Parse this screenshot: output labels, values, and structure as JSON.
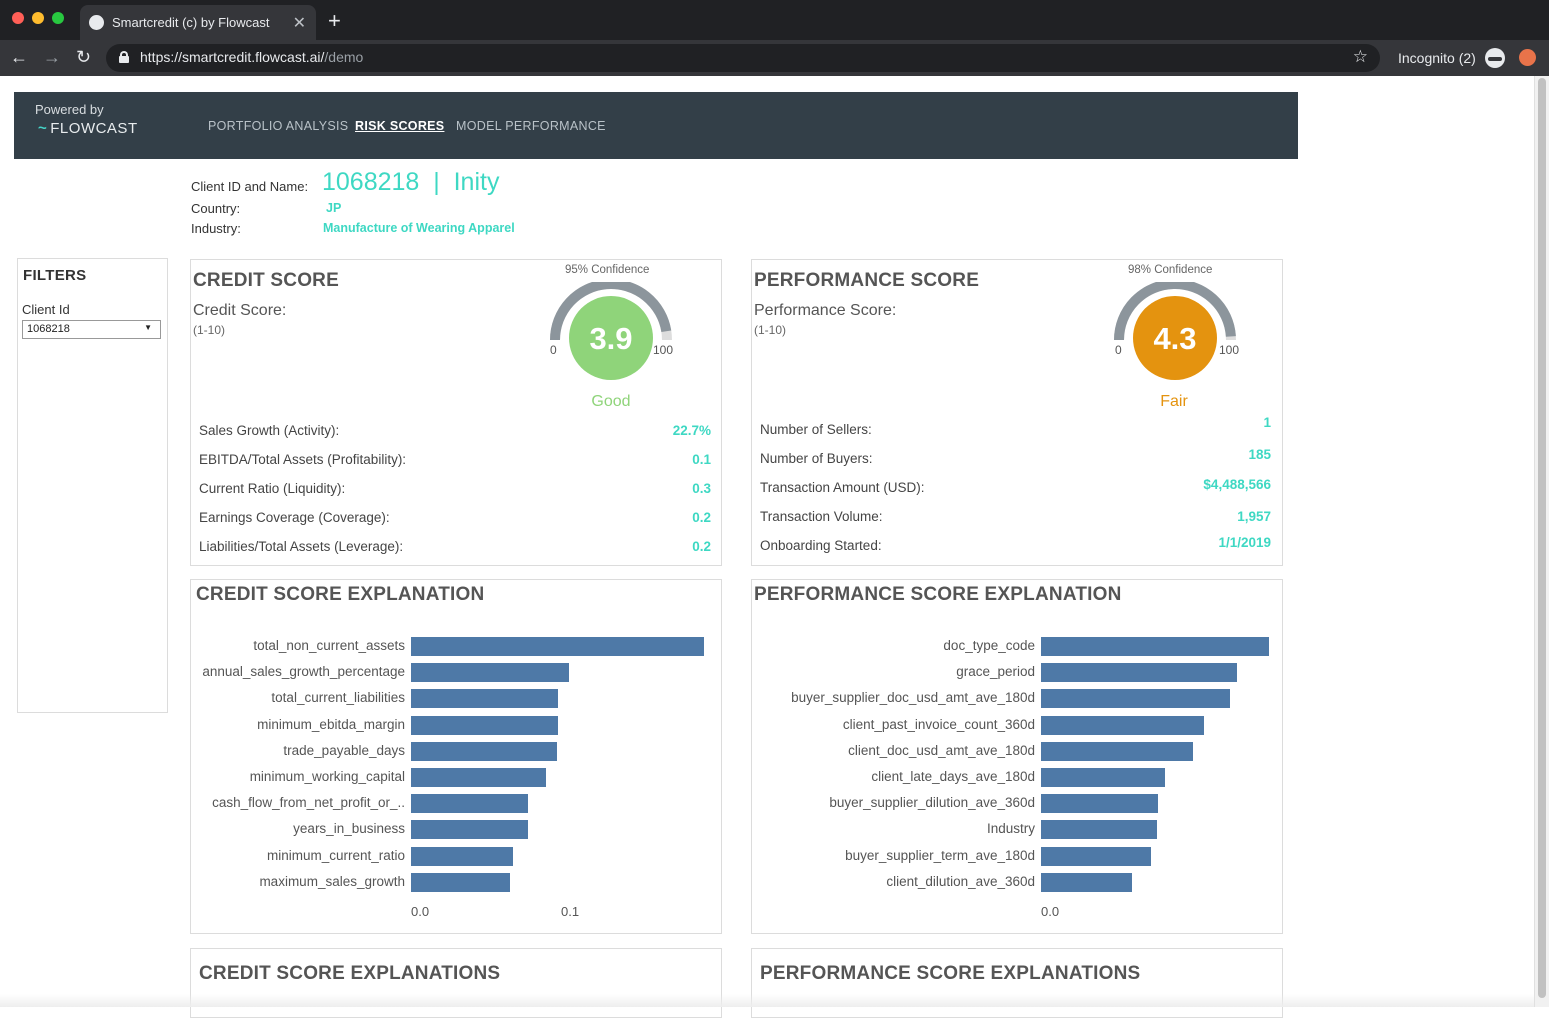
{
  "browser": {
    "tab_title": "Smartcredit (c) by Flowcast",
    "url_host": "https://smartcredit.flowcast.ai/",
    "url_path": "/demo",
    "incognito": "Incognito (2)"
  },
  "header": {
    "powered_by": "Powered by",
    "logo": "FLOWCAST",
    "nav": [
      "PORTFOLIO ANALYSIS",
      "RISK SCORES",
      "MODEL PERFORMANCE"
    ],
    "active_nav": "RISK SCORES"
  },
  "client": {
    "id_label": "Client ID and Name:",
    "id_name": "1068218  |  Inity",
    "country_label": "Country:",
    "country": "JP",
    "industry_label": "Industry:",
    "industry": "Manufacture of Wearing Apparel"
  },
  "filters": {
    "title": "FILTERS",
    "client_id_label": "Client Id",
    "client_id_value": "1068218"
  },
  "credit": {
    "title": "CREDIT SCORE",
    "subtitle": "Credit Score:",
    "range": "(1-10)",
    "confidence": "95% Confidence",
    "score": "3.9",
    "gauge_min": "0",
    "gauge_max": "100",
    "rating": "Good",
    "rating_color": "#8fd47a",
    "confidence_level": 0.95,
    "metrics": [
      {
        "label": "Sales Growth (Activity):",
        "value": "22.7%"
      },
      {
        "label": "EBITDA/Total Assets (Profitability):",
        "value": "0.1"
      },
      {
        "label": "Current Ratio (Liquidity):",
        "value": "0.3"
      },
      {
        "label": "Earnings Coverage (Coverage):",
        "value": "0.2"
      },
      {
        "label": "Liabilities/Total Assets (Leverage):",
        "value": "0.2"
      }
    ]
  },
  "performance": {
    "title": "PERFORMANCE SCORE",
    "subtitle": "Performance Score:",
    "range": "(1-10)",
    "confidence": "98% Confidence",
    "score": "4.3",
    "gauge_min": "0",
    "gauge_max": "100",
    "rating": "Fair",
    "rating_color": "#e4930f",
    "confidence_level": 0.98,
    "metrics": [
      {
        "label": "Number of Sellers:",
        "value": "1"
      },
      {
        "label": "Number of Buyers:",
        "value": "185"
      },
      {
        "label": "Transaction Amount (USD):",
        "value": "$4,488,566"
      },
      {
        "label": "Transaction Volume:",
        "value": "1,957"
      },
      {
        "label": "Onboarding Started:",
        "value": "1/1/2019"
      }
    ]
  },
  "chart_data": [
    {
      "type": "bar",
      "title": "CREDIT SCORE EXPLANATION",
      "orientation": "horizontal",
      "categories": [
        "total_non_current_assets",
        "annual_sales_growth_percentage",
        "total_current_liabilities",
        "minimum_ebitda_margin",
        "trade_payable_days",
        "minimum_working_capital",
        "cash_flow_from_net_profit_or_..",
        "years_in_business",
        "minimum_current_ratio",
        "maximum_sales_growth"
      ],
      "values": [
        0.195,
        0.105,
        0.098,
        0.098,
        0.097,
        0.09,
        0.078,
        0.078,
        0.068,
        0.066
      ],
      "xticks": [
        "0.0",
        "0.1"
      ],
      "xlim": [
        0,
        0.2
      ]
    },
    {
      "type": "bar",
      "title": "PERFORMANCE SCORE EXPLANATION",
      "orientation": "horizontal",
      "categories": [
        "doc_type_code",
        "grace_period",
        "buyer_supplier_doc_usd_amt_ave_180d",
        "client_past_invoice_count_360d",
        "client_doc_usd_amt_ave_180d",
        "client_late_days_ave_180d",
        "buyer_supplier_dilution_ave_360d",
        "Industry",
        "buyer_supplier_term_ave_180d",
        "client_dilution_ave_360d"
      ],
      "values": [
        0.228,
        0.196,
        0.189,
        0.163,
        0.152,
        0.124,
        0.117,
        0.116,
        0.11,
        0.091
      ],
      "xticks": [
        "0.0"
      ],
      "xlim": [
        0,
        0.23
      ]
    }
  ],
  "bottom": {
    "credit_title": "CREDIT SCORE EXPLANATIONS",
    "perf_title": "PERFORMANCE SCORE EXPLANATIONS"
  }
}
